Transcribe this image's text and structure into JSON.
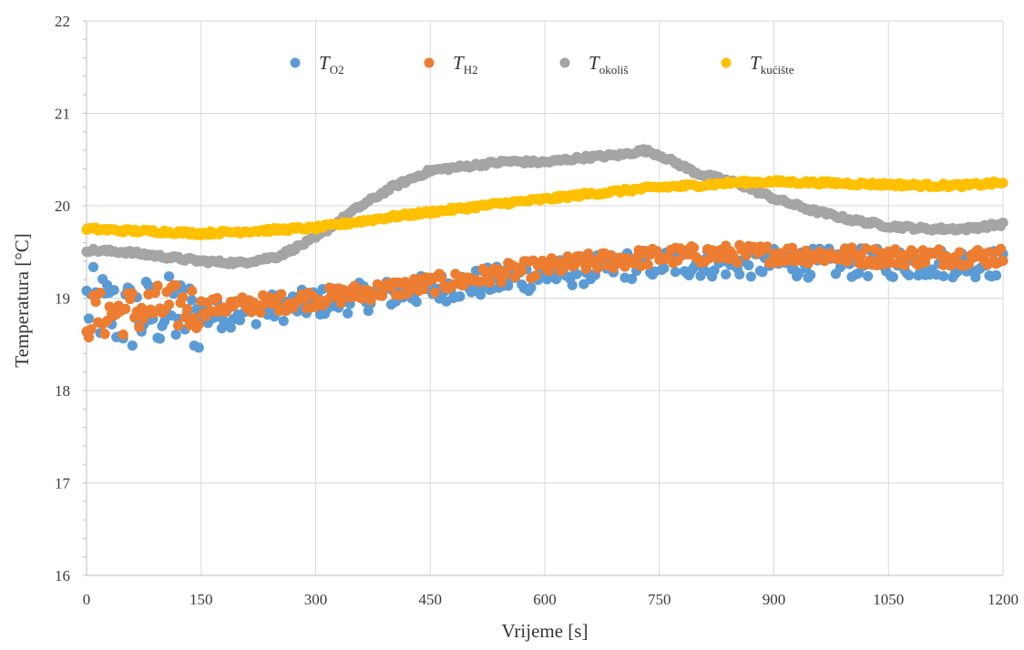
{
  "chart_data": {
    "type": "scatter",
    "title": "",
    "xlabel": "Vrijeme [s]",
    "ylabel": "Temperatura [°C]",
    "xlim": [
      0,
      1200
    ],
    "ylim": [
      16,
      22
    ],
    "x_ticks": [
      0,
      150,
      300,
      450,
      600,
      750,
      900,
      1050,
      1200
    ],
    "y_ticks": [
      16,
      17,
      18,
      19,
      20,
      21,
      22
    ],
    "grid": true,
    "legend_position": "top-center",
    "series": [
      {
        "name": "T_O2",
        "label_main": "T",
        "label_sub": "O2",
        "color": "#5b9bd5",
        "band": 0.16,
        "x": [
          0,
          50,
          100,
          150,
          200,
          250,
          300,
          350,
          400,
          450,
          500,
          550,
          600,
          650,
          700,
          750,
          800,
          850,
          900,
          950,
          1000,
          1050,
          1100,
          1150,
          1200
        ],
        "y": [
          18.95,
          18.8,
          18.85,
          18.8,
          18.85,
          18.9,
          18.95,
          19.0,
          19.05,
          19.1,
          19.15,
          19.2,
          19.25,
          19.3,
          19.35,
          19.38,
          19.38,
          19.38,
          19.38,
          19.38,
          19.38,
          19.38,
          19.38,
          19.38,
          19.38
        ]
      },
      {
        "name": "T_H2",
        "label_main": "T",
        "label_sub": "H2",
        "color": "#ed7d31",
        "band": 0.1,
        "x": [
          0,
          50,
          100,
          150,
          200,
          250,
          300,
          350,
          400,
          450,
          500,
          550,
          600,
          650,
          700,
          750,
          800,
          850,
          900,
          950,
          1000,
          1050,
          1100,
          1150,
          1200
        ],
        "y": [
          18.8,
          18.85,
          18.9,
          18.9,
          18.92,
          18.95,
          19.0,
          19.05,
          19.1,
          19.15,
          19.2,
          19.28,
          19.33,
          19.38,
          19.42,
          19.45,
          19.47,
          19.48,
          19.48,
          19.47,
          19.46,
          19.45,
          19.45,
          19.45,
          19.45
        ]
      },
      {
        "name": "T_okoliš",
        "label_main": "T",
        "label_sub": "okoliš",
        "color": "#a5a5a5",
        "band": 0.02,
        "x": [
          0,
          50,
          100,
          150,
          200,
          250,
          300,
          350,
          400,
          450,
          500,
          550,
          600,
          650,
          700,
          730,
          750,
          800,
          850,
          900,
          950,
          1000,
          1050,
          1100,
          1150,
          1200
        ],
        "y": [
          19.52,
          19.5,
          19.45,
          19.4,
          19.38,
          19.45,
          19.65,
          19.95,
          20.2,
          20.38,
          20.43,
          20.48,
          20.47,
          20.52,
          20.55,
          20.6,
          20.55,
          20.35,
          20.25,
          20.08,
          19.95,
          19.85,
          19.78,
          19.75,
          19.75,
          19.8
        ]
      },
      {
        "name": "T_kućište",
        "label_main": "T",
        "label_sub": "kućište",
        "color": "#ffc000",
        "band": 0.02,
        "x": [
          0,
          50,
          100,
          150,
          200,
          250,
          300,
          350,
          400,
          450,
          500,
          550,
          600,
          650,
          700,
          750,
          800,
          850,
          900,
          950,
          1000,
          1050,
          1100,
          1150,
          1200
        ],
        "y": [
          19.75,
          19.73,
          19.72,
          19.7,
          19.72,
          19.74,
          19.76,
          19.82,
          19.88,
          19.93,
          19.98,
          20.03,
          20.07,
          20.12,
          20.16,
          20.2,
          20.22,
          20.25,
          20.26,
          20.25,
          20.24,
          20.23,
          20.22,
          20.22,
          20.25
        ]
      }
    ]
  }
}
